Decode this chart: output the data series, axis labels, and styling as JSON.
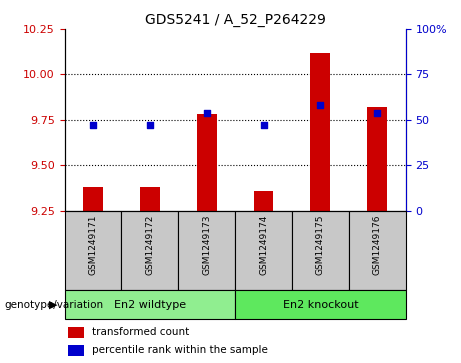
{
  "title": "GDS5241 / A_52_P264229",
  "samples": [
    "GSM1249171",
    "GSM1249172",
    "GSM1249173",
    "GSM1249174",
    "GSM1249175",
    "GSM1249176"
  ],
  "red_values": [
    9.38,
    9.38,
    9.78,
    9.36,
    10.12,
    9.82
  ],
  "blue_values": [
    9.72,
    9.72,
    9.79,
    9.72,
    9.83,
    9.79
  ],
  "ylim_left": [
    9.25,
    10.25
  ],
  "ylim_right": [
    0,
    100
  ],
  "yticks_left": [
    9.25,
    9.5,
    9.75,
    10.0,
    10.25
  ],
  "yticks_right": [
    0,
    25,
    50,
    75,
    100
  ],
  "groups": [
    {
      "label": "En2 wildtype",
      "indices": [
        0,
        1,
        2
      ],
      "color": "#90EE90"
    },
    {
      "label": "En2 knockout",
      "indices": [
        3,
        4,
        5
      ],
      "color": "#5EE85E"
    }
  ],
  "group_label": "genotype/variation",
  "legend_items": [
    {
      "label": "transformed count",
      "color": "#CC0000"
    },
    {
      "label": "percentile rank within the sample",
      "color": "#0000CC"
    }
  ],
  "bar_color": "#CC0000",
  "dot_color": "#0000CC",
  "bar_width": 0.35,
  "background_label": "#C8C8C8",
  "left_axis_color": "#CC0000",
  "right_axis_color": "#0000CC"
}
